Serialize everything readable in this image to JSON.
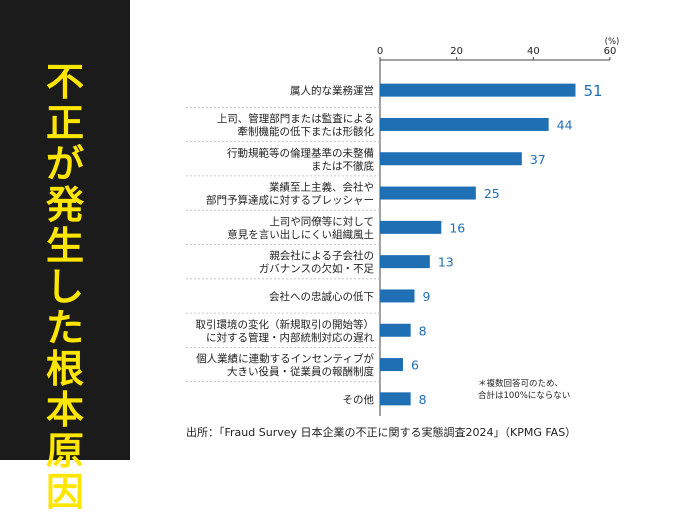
{
  "side_title": [
    "不",
    "正",
    "が",
    "発",
    "生",
    "し",
    "た",
    "根",
    "本",
    "原",
    "因"
  ],
  "unit": "(%)",
  "note": [
    "＊複数回答可のため、",
    "合計は100%にならない"
  ],
  "source": "出所：「Fraud Survey 日本企業の不正に関する実態調査2024」（KPMG FAS）",
  "colors": {
    "bar": "#1f6fb5",
    "value": "#1f6fb5",
    "side_bg": "#1b1b1b",
    "side_text": "#ffe600"
  },
  "chart_data": {
    "type": "bar",
    "orientation": "horizontal",
    "xlim": [
      0,
      60
    ],
    "ticks": [
      0,
      20,
      40,
      60
    ],
    "categories": [
      [
        "属人的な業務運営"
      ],
      [
        "上司、管理部門または監査による",
        "牽制機能の低下または形骸化"
      ],
      [
        "行動規範等の倫理基準の未整備",
        "または不徹底"
      ],
      [
        "業績至上主義、会社や",
        "部門予算達成に対するプレッシャー"
      ],
      [
        "上司や同僚等に対して",
        "意見を言い出しにくい組織風土"
      ],
      [
        "親会社による子会社の",
        "ガバナンスの欠如・不足"
      ],
      [
        "会社への忠誠心の低下"
      ],
      [
        "取引環境の変化（新規取引の開始等）",
        "に対する管理・内部統制対応の遅れ"
      ],
      [
        "個人業績に連動するインセンティブが",
        "大きい役員・従業員の報酬制度"
      ],
      [
        "その他"
      ]
    ],
    "values": [
      51,
      44,
      37,
      25,
      16,
      13,
      9,
      8,
      6,
      8
    ]
  }
}
